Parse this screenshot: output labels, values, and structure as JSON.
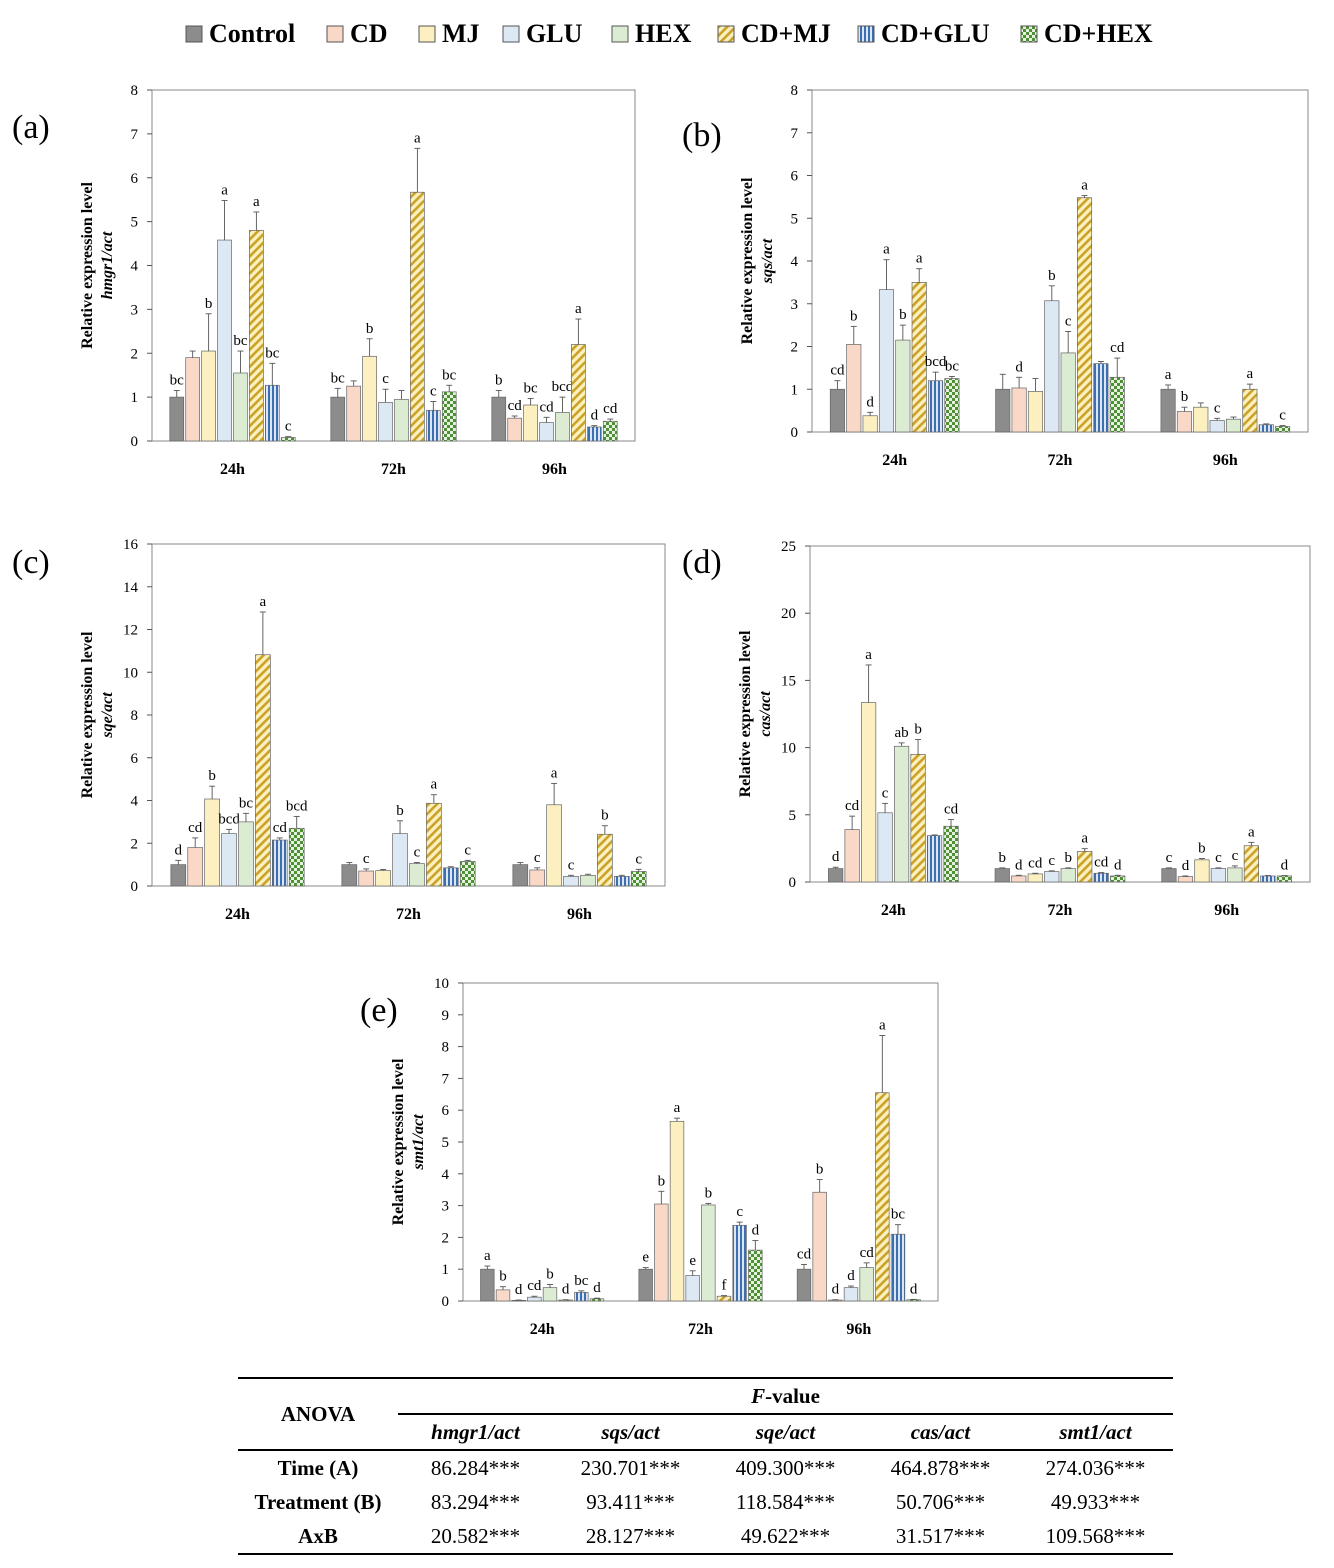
{
  "legend": [
    {
      "name": "Control",
      "fill": "#8c8c8c",
      "pattern": "solid"
    },
    {
      "name": "CD",
      "fill": "#f9d8c8",
      "pattern": "solid"
    },
    {
      "name": "MJ",
      "fill": "#fdf0c0",
      "pattern": "solid"
    },
    {
      "name": "GLU",
      "fill": "#dde8f5",
      "pattern": "solid"
    },
    {
      "name": "HEX",
      "fill": "#dcecd2",
      "pattern": "solid"
    },
    {
      "name": "CD+MJ",
      "fill": "#e6c766",
      "pattern": "diagonal"
    },
    {
      "name": "CD+GLU",
      "fill": "#4a78b8",
      "pattern": "vertical"
    },
    {
      "name": "CD+HEX",
      "fill": "#6aa84f",
      "pattern": "checker"
    }
  ],
  "chart_data": [
    {
      "id": "a",
      "panel_label": "(a)",
      "type": "bar",
      "ylabel": "Relative expression level",
      "ylabel_gene": "hmgr1/act",
      "ylim": [
        0,
        8
      ],
      "yticks": [
        "0",
        "1",
        "2",
        "3",
        "4",
        "5",
        "6",
        "7",
        "8"
      ],
      "categories": [
        "24h",
        "72h",
        "96h"
      ],
      "series": [
        {
          "name": "Control",
          "values": [
            1.0,
            1.0,
            1.0
          ],
          "errors": [
            0.15,
            0.2,
            0.15
          ]
        },
        {
          "name": "CD",
          "values": [
            1.9,
            1.25,
            0.52
          ],
          "errors": [
            0.15,
            0.12,
            0.05
          ]
        },
        {
          "name": "MJ",
          "values": [
            2.05,
            1.93,
            0.82
          ],
          "errors": [
            0.85,
            0.4,
            0.15
          ]
        },
        {
          "name": "GLU",
          "values": [
            4.58,
            0.88,
            0.42
          ],
          "errors": [
            0.9,
            0.3,
            0.12
          ]
        },
        {
          "name": "HEX",
          "values": [
            1.55,
            0.95,
            0.65
          ],
          "errors": [
            0.5,
            0.2,
            0.35
          ]
        },
        {
          "name": "CD+MJ",
          "values": [
            4.8,
            5.67,
            2.2
          ],
          "errors": [
            0.42,
            1.0,
            0.58
          ]
        },
        {
          "name": "CD+GLU",
          "values": [
            1.27,
            0.7,
            0.32
          ],
          "errors": [
            0.5,
            0.2,
            0.03
          ]
        },
        {
          "name": "CD+HEX",
          "values": [
            0.08,
            1.12,
            0.45
          ],
          "errors": [
            0.02,
            0.15,
            0.05
          ]
        }
      ],
      "letters": [
        [
          "bc",
          "",
          "b",
          "a",
          "bc",
          "a",
          "bc",
          "c"
        ],
        [
          "bc",
          "",
          "b",
          "c",
          "",
          "a",
          "c",
          "bc"
        ],
        [
          "b",
          "cd",
          "bc",
          "cd",
          "bcd",
          "a",
          "d",
          "cd"
        ]
      ]
    },
    {
      "id": "b",
      "panel_label": "(b)",
      "type": "bar",
      "ylabel": "Relative expression level",
      "ylabel_gene": "sqs/act",
      "ylim": [
        0,
        8
      ],
      "yticks": [
        "0",
        "1",
        "2",
        "3",
        "4",
        "5",
        "6",
        "7",
        "8"
      ],
      "categories": [
        "24h",
        "72h",
        "96h"
      ],
      "series": [
        {
          "name": "Control",
          "values": [
            1.0,
            1.0,
            1.0
          ],
          "errors": [
            0.2,
            0.35,
            0.1
          ]
        },
        {
          "name": "CD",
          "values": [
            2.05,
            1.03,
            0.48
          ],
          "errors": [
            0.42,
            0.25,
            0.1
          ]
        },
        {
          "name": "MJ",
          "values": [
            0.38,
            0.95,
            0.58
          ],
          "errors": [
            0.08,
            0.3,
            0.1
          ]
        },
        {
          "name": "GLU",
          "values": [
            3.33,
            3.07,
            0.27
          ],
          "errors": [
            0.7,
            0.35,
            0.05
          ]
        },
        {
          "name": "HEX",
          "values": [
            2.15,
            1.85,
            0.3
          ],
          "errors": [
            0.35,
            0.5,
            0.05
          ]
        },
        {
          "name": "CD+MJ",
          "values": [
            3.5,
            5.48,
            1.0
          ],
          "errors": [
            0.32,
            0.05,
            0.12
          ]
        },
        {
          "name": "CD+GLU",
          "values": [
            1.2,
            1.6,
            0.17
          ],
          "errors": [
            0.2,
            0.05,
            0.02
          ]
        },
        {
          "name": "CD+HEX",
          "values": [
            1.25,
            1.28,
            0.13
          ],
          "errors": [
            0.05,
            0.45,
            0.02
          ]
        }
      ],
      "letters": [
        [
          "cd",
          "b",
          "d",
          "a",
          "b",
          "a",
          "bcd",
          "bc"
        ],
        [
          "",
          "d",
          "",
          "b",
          "c",
          "a",
          "",
          "cd"
        ],
        [
          "a",
          "b",
          "",
          "c",
          "",
          "a",
          "",
          "c"
        ]
      ]
    },
    {
      "id": "c",
      "panel_label": "(c)",
      "type": "bar",
      "ylabel": "Relative expression level",
      "ylabel_gene": "sqe/act",
      "ylim": [
        0,
        16
      ],
      "yticks": [
        "0",
        "2",
        "4",
        "6",
        "8",
        "10",
        "12",
        "14",
        "16"
      ],
      "categories": [
        "24h",
        "72h",
        "96h"
      ],
      "series": [
        {
          "name": "Control",
          "values": [
            1.0,
            1.0,
            1.0
          ],
          "errors": [
            0.2,
            0.1,
            0.1
          ]
        },
        {
          "name": "CD",
          "values": [
            1.8,
            0.7,
            0.75
          ],
          "errors": [
            0.45,
            0.1,
            0.1
          ]
        },
        {
          "name": "MJ",
          "values": [
            4.07,
            0.72,
            3.8
          ],
          "errors": [
            0.6,
            0.05,
            1.0
          ]
        },
        {
          "name": "GLU",
          "values": [
            2.45,
            2.45,
            0.45
          ],
          "errors": [
            0.2,
            0.6,
            0.05
          ]
        },
        {
          "name": "HEX",
          "values": [
            3.0,
            1.05,
            0.5
          ],
          "errors": [
            0.4,
            0.05,
            0.05
          ]
        },
        {
          "name": "CD+MJ",
          "values": [
            10.82,
            3.87,
            2.42
          ],
          "errors": [
            2.0,
            0.4,
            0.4
          ]
        },
        {
          "name": "CD+GLU",
          "values": [
            2.15,
            0.85,
            0.45
          ],
          "errors": [
            0.1,
            0.05,
            0.05
          ]
        },
        {
          "name": "CD+HEX",
          "values": [
            2.7,
            1.15,
            0.68
          ],
          "errors": [
            0.55,
            0.05,
            0.1
          ]
        }
      ],
      "letters": [
        [
          "d",
          "cd",
          "b",
          "bcd",
          "bc",
          "a",
          "cd",
          "bcd"
        ],
        [
          "",
          "c",
          "",
          "b",
          "c",
          "a",
          "",
          "c"
        ],
        [
          "",
          "c",
          "a",
          "c",
          "",
          "b",
          "",
          "c"
        ]
      ]
    },
    {
      "id": "d",
      "panel_label": "(d)",
      "type": "bar",
      "ylabel": "Relative expression level",
      "ylabel_gene": "cas/act",
      "ylim": [
        0,
        25
      ],
      "yticks": [
        "0",
        "5",
        "10",
        "15",
        "20",
        "25"
      ],
      "categories": [
        "24h",
        "72h",
        "96h"
      ],
      "series": [
        {
          "name": "Control",
          "values": [
            1.0,
            1.0,
            1.0
          ],
          "errors": [
            0.1,
            0.05,
            0.05
          ]
        },
        {
          "name": "CD",
          "values": [
            3.9,
            0.45,
            0.4
          ],
          "errors": [
            1.0,
            0.05,
            0.05
          ]
        },
        {
          "name": "MJ",
          "values": [
            13.35,
            0.6,
            1.65
          ],
          "errors": [
            2.8,
            0.05,
            0.1
          ]
        },
        {
          "name": "GLU",
          "values": [
            5.15,
            0.78,
            1.0
          ],
          "errors": [
            0.7,
            0.05,
            0.05
          ]
        },
        {
          "name": "HEX",
          "values": [
            10.1,
            1.0,
            1.05
          ],
          "errors": [
            0.25,
            0.05,
            0.15
          ]
        },
        {
          "name": "CD+MJ",
          "values": [
            9.5,
            2.28,
            2.7
          ],
          "errors": [
            1.1,
            0.2,
            0.25
          ]
        },
        {
          "name": "CD+GLU",
          "values": [
            3.45,
            0.65,
            0.45
          ],
          "errors": [
            0.05,
            0.05,
            0.03
          ]
        },
        {
          "name": "CD+HEX",
          "values": [
            4.15,
            0.45,
            0.45
          ],
          "errors": [
            0.5,
            0.05,
            0.03
          ]
        }
      ],
      "letters": [
        [
          "d",
          "cd",
          "a",
          "c",
          "ab",
          "b",
          "",
          "cd"
        ],
        [
          "b",
          "d",
          "cd",
          "c",
          "b",
          "a",
          "cd",
          "d"
        ],
        [
          "c",
          "d",
          "b",
          "c",
          "c",
          "a",
          "",
          "d"
        ]
      ]
    },
    {
      "id": "e",
      "panel_label": "(e)",
      "type": "bar",
      "ylabel": "Relative expression level",
      "ylabel_gene": "smt1/act",
      "ylim": [
        0,
        10
      ],
      "yticks": [
        "0",
        "1",
        "2",
        "3",
        "4",
        "5",
        "6",
        "7",
        "8",
        "9",
        "10"
      ],
      "categories": [
        "24h",
        "72h",
        "96h"
      ],
      "series": [
        {
          "name": "Control",
          "values": [
            1.0,
            1.0,
            1.0
          ],
          "errors": [
            0.1,
            0.05,
            0.15
          ]
        },
        {
          "name": "CD",
          "values": [
            0.35,
            3.05,
            3.42
          ],
          "errors": [
            0.1,
            0.4,
            0.4
          ]
        },
        {
          "name": "MJ",
          "values": [
            0.02,
            5.65,
            0.03
          ],
          "errors": [
            0.01,
            0.1,
            0.01
          ]
        },
        {
          "name": "GLU",
          "values": [
            0.12,
            0.8,
            0.42
          ],
          "errors": [
            0.03,
            0.15,
            0.05
          ]
        },
        {
          "name": "HEX",
          "values": [
            0.42,
            3.02,
            1.05
          ],
          "errors": [
            0.1,
            0.05,
            0.15
          ]
        },
        {
          "name": "CD+MJ",
          "values": [
            0.03,
            0.15,
            6.55
          ],
          "errors": [
            0.01,
            0.02,
            1.8
          ]
        },
        {
          "name": "CD+GLU",
          "values": [
            0.27,
            2.38,
            2.1
          ],
          "errors": [
            0.05,
            0.1,
            0.3
          ]
        },
        {
          "name": "CD+HEX",
          "values": [
            0.07,
            1.6,
            0.04
          ],
          "errors": [
            0.02,
            0.3,
            0.01
          ]
        }
      ],
      "letters": [
        [
          "a",
          "b",
          "d",
          "cd",
          "b",
          "d",
          "bc",
          "d"
        ],
        [
          "e",
          "b",
          "a",
          "e",
          "b",
          "f",
          "c",
          "d"
        ],
        [
          "cd",
          "b",
          "d",
          "d",
          "cd",
          "a",
          "bc",
          "d"
        ]
      ]
    }
  ],
  "anova": {
    "header_left": "ANOVA",
    "fvalue_label_italic": "F",
    "fvalue_label_rest": "-value",
    "columns": [
      "hmgr1/act",
      "sqs/act",
      "sqe/act",
      "cas/act",
      "smt1/act"
    ],
    "rows": [
      {
        "label": "Time (A)",
        "values": [
          "86.284***",
          "230.701***",
          "409.300***",
          "464.878***",
          "274.036***"
        ]
      },
      {
        "label": "Treatment (B)",
        "values": [
          "83.294***",
          "93.411***",
          "118.584***",
          "50.706***",
          "49.933***"
        ]
      },
      {
        "label": "AxB",
        "values": [
          "20.582***",
          "28.127***",
          "49.622***",
          "31.517***",
          "109.568***"
        ]
      }
    ]
  }
}
